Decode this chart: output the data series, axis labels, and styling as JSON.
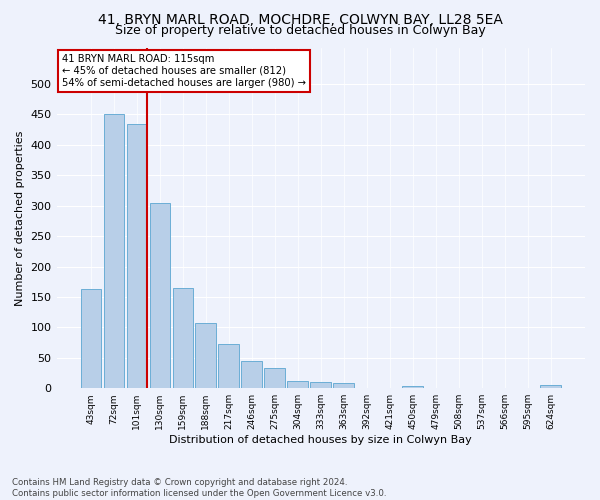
{
  "title1": "41, BRYN MARL ROAD, MOCHDRE, COLWYN BAY, LL28 5EA",
  "title2": "Size of property relative to detached houses in Colwyn Bay",
  "xlabel": "Distribution of detached houses by size in Colwyn Bay",
  "ylabel": "Number of detached properties",
  "categories": [
    "43sqm",
    "72sqm",
    "101sqm",
    "130sqm",
    "159sqm",
    "188sqm",
    "217sqm",
    "246sqm",
    "275sqm",
    "304sqm",
    "333sqm",
    "363sqm",
    "392sqm",
    "421sqm",
    "450sqm",
    "479sqm",
    "508sqm",
    "537sqm",
    "566sqm",
    "595sqm",
    "624sqm"
  ],
  "values": [
    163,
    450,
    435,
    305,
    165,
    107,
    73,
    44,
    33,
    12,
    11,
    9,
    0,
    0,
    4,
    0,
    0,
    0,
    0,
    0,
    5
  ],
  "bar_color": "#b8cfe8",
  "bar_edge_color": "#6baed6",
  "red_line_index": 2,
  "annotation_text": "41 BRYN MARL ROAD: 115sqm\n← 45% of detached houses are smaller (812)\n54% of semi-detached houses are larger (980) →",
  "annotation_box_color": "#ffffff",
  "annotation_box_edge_color": "#cc0000",
  "red_line_color": "#cc0000",
  "footnote": "Contains HM Land Registry data © Crown copyright and database right 2024.\nContains public sector information licensed under the Open Government Licence v3.0.",
  "ylim": [
    0,
    560
  ],
  "yticks": [
    0,
    50,
    100,
    150,
    200,
    250,
    300,
    350,
    400,
    450,
    500
  ],
  "bg_color": "#eef2fc",
  "grid_color": "#ffffff",
  "title1_fontsize": 10,
  "title2_fontsize": 9
}
